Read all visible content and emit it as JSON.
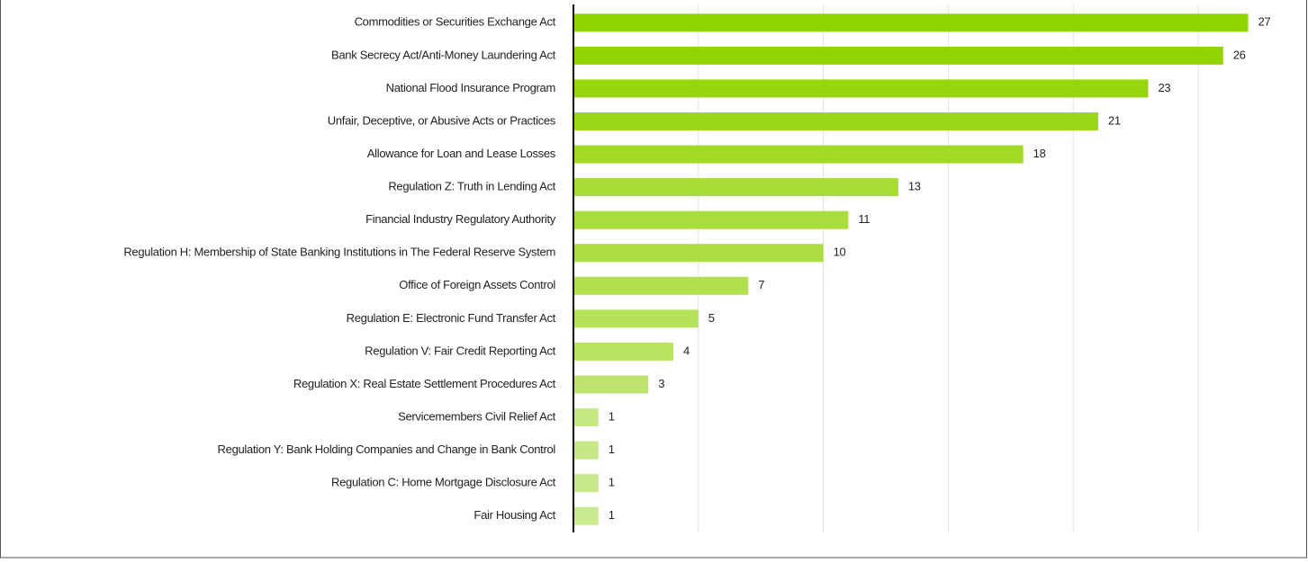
{
  "chart_data": {
    "type": "barh",
    "categories": [
      "Commodities or Securities Exchange Act",
      "Bank Secrecy Act/Anti-Money Laundering Act",
      "National Flood Insurance Program",
      "Unfair, Deceptive, or Abusive Acts or Practices",
      "Allowance for Loan and Lease Losses",
      "Regulation Z: Truth in Lending Act",
      "Financial Industry Regulatory Authority",
      "Regulation H: Membership of State Banking Institutions in The Federal Reserve System",
      "Office of Foreign Assets Control",
      "Regulation E: Electronic Fund Transfer Act",
      "Regulation V: Fair Credit Reporting Act",
      "Regulation X: Real Estate Settlement Procedures Act",
      "Servicemembers Civil Relief Act",
      "Regulation Y: Bank Holding Companies and Change in Bank Control",
      "Regulation C: Home Mortgage Disclosure Act",
      "Fair Housing Act"
    ],
    "values": [
      27,
      26,
      23,
      21,
      18,
      13,
      11,
      10,
      7,
      5,
      4,
      3,
      1,
      1,
      1,
      1
    ],
    "colors": [
      "#92d400",
      "#93d404",
      "#97d60c",
      "#9bd818",
      "#a0da24",
      "#a6dc34",
      "#a9dd3c",
      "#acde44",
      "#b1e04e",
      "#b5e258",
      "#b9e462",
      "#bde46c",
      "#c5e882",
      "#c6e886",
      "#c8e98a",
      "#c9ea8e"
    ],
    "xlim": [
      0,
      29
    ],
    "xticks": [
      0,
      5,
      10,
      15,
      20,
      25
    ],
    "grid": true
  }
}
